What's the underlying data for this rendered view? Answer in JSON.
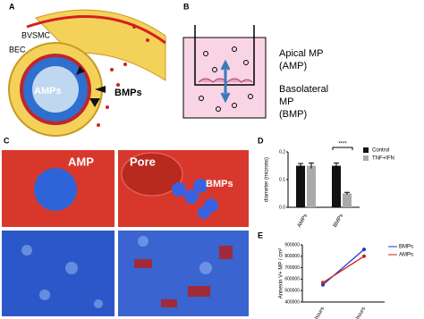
{
  "panels": {
    "a": {
      "label": "A",
      "bvsmc": "BVSMC",
      "bec": "BEC",
      "amps": "AMPs",
      "bmps": "BMPs"
    },
    "b": {
      "label": "B",
      "apical": [
        "Apical MP",
        "(AMP)"
      ],
      "basolateral": [
        "Basolateral",
        "MP",
        "(BMP)"
      ]
    },
    "c": {
      "label": "C",
      "amp": "AMP",
      "pore": "Pore",
      "bmps": "BMPs"
    },
    "d": {
      "label": "D"
    },
    "e": {
      "label": "E"
    }
  },
  "chart_data": [
    {
      "type": "bar",
      "y_label": "diameter (microns)",
      "categories": [
        "AMPs",
        "BMPs"
      ],
      "series": [
        {
          "name": "Control",
          "color": "#111111",
          "values": [
            0.15,
            0.15
          ],
          "errors": [
            0.008,
            0.01
          ]
        },
        {
          "name": "TNF+IFN",
          "color": "#aaaaaa",
          "values": [
            0.15,
            0.05
          ],
          "errors": [
            0.01,
            0.004
          ]
        }
      ],
      "ylim": [
        0,
        0.2
      ],
      "yticks": [
        {
          "value": 0,
          "label": "0.0"
        },
        {
          "value": 0.1,
          "label": "0.1"
        },
        {
          "value": 0.2,
          "label": "0.2"
        }
      ],
      "annotation": "****",
      "legend": "right"
    },
    {
      "type": "line",
      "y_label": "Annexin V+ MP / cm²",
      "categories": [
        "24 hours",
        "48 hours"
      ],
      "series": [
        {
          "name": "BMPs",
          "color": "#2233cc",
          "values": [
            550000,
            860000
          ]
        },
        {
          "name": "AMPs",
          "color": "#cc2222",
          "values": [
            570000,
            800000
          ]
        }
      ],
      "ylim": [
        400000,
        900000
      ],
      "yticks": [
        400000,
        500000,
        600000,
        700000,
        800000,
        900000
      ],
      "legend": "right"
    }
  ]
}
